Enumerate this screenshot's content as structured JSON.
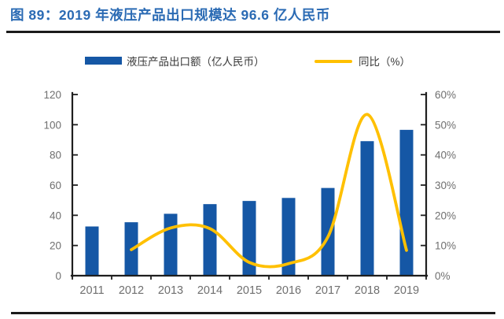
{
  "header": {
    "figure_label": "图 89：2019 年液压产品出口规模达 96.6 亿人民币"
  },
  "legend": {
    "bar_label": "液压产品出口额（亿人民币）",
    "line_label": "同比（%）"
  },
  "colors": {
    "bar": "#1557A5",
    "line": "#FFC000",
    "title": "#2B6BB4",
    "axis_text": "#6F6F6F",
    "axis_line": "#1F1F1F"
  },
  "chart_data": {
    "type": "bar",
    "subtype": "bar+line combo, dual axis, smoothed line",
    "title": "图 89：2019 年液压产品出口规模达 96.6 亿人民币",
    "categories": [
      "2011",
      "2012",
      "2013",
      "2014",
      "2015",
      "2016",
      "2017",
      "2018",
      "2019"
    ],
    "series": [
      {
        "name": "液压产品出口额（亿人民币）",
        "type": "bar",
        "axis": "left",
        "values": [
          32.6,
          35.4,
          41.0,
          47.4,
          49.5,
          51.5,
          58.1,
          89.1,
          96.6
        ]
      },
      {
        "name": "同比（%）",
        "type": "line",
        "axis": "right",
        "values": [
          null,
          8.6,
          15.8,
          15.6,
          4.4,
          4.0,
          12.8,
          53.4,
          8.4
        ]
      }
    ],
    "left_axis": {
      "min": 0,
      "max": 120,
      "tick_step": 20,
      "tick_labels": [
        "0",
        "20",
        "40",
        "60",
        "80",
        "100",
        "120"
      ]
    },
    "right_axis": {
      "min": 0,
      "max": 60,
      "tick_step": 10,
      "tick_labels": [
        "0%",
        "10%",
        "20%",
        "30%",
        "40%",
        "50%",
        "60%"
      ]
    },
    "xlabel": "",
    "ylabel": "",
    "grid": false,
    "legend_position": "top",
    "line_smoothed": true
  }
}
